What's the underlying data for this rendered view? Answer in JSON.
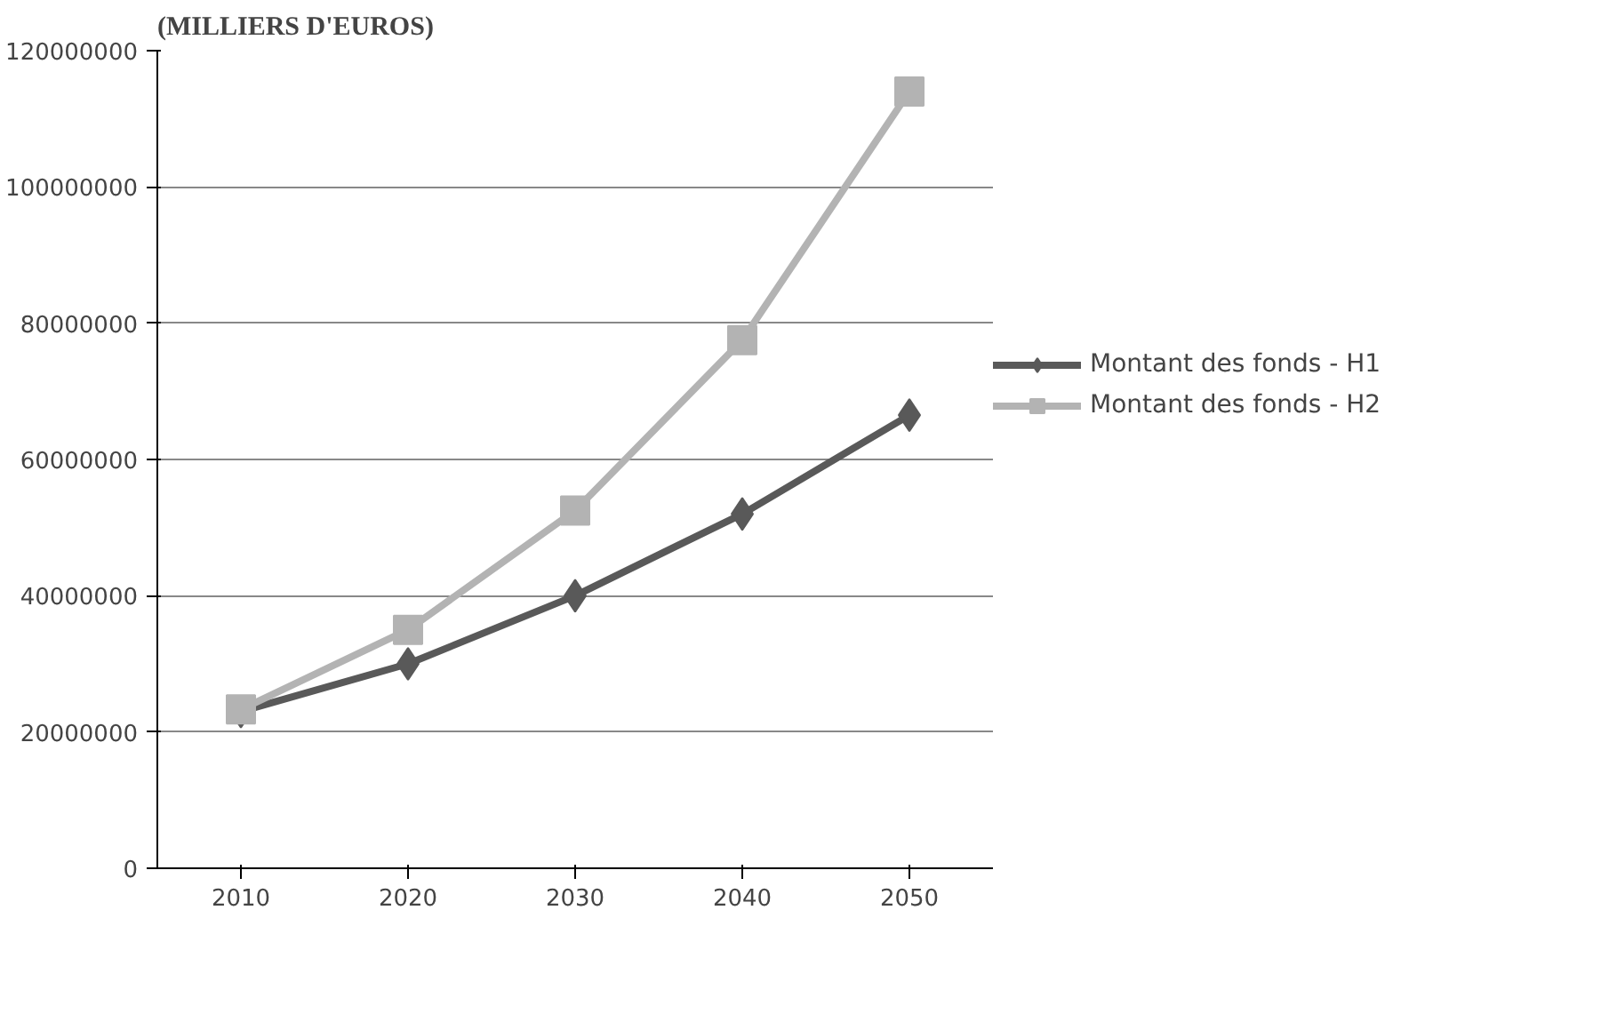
{
  "chart_data": {
    "type": "line",
    "title": "(MILLIERS D'EUROS)",
    "categories": [
      "2010",
      "2020",
      "2030",
      "2040",
      "2050"
    ],
    "series": [
      {
        "name": "Montant des fonds - H1",
        "color": "#595959",
        "marker": "diamond",
        "values": [
          23000000,
          30000000,
          40000000,
          52000000,
          66500000
        ]
      },
      {
        "name": "Montant des fonds - H2",
        "color": "#b3b3b3",
        "marker": "square",
        "values": [
          23300000,
          35000000,
          52500000,
          77500000,
          114000000
        ]
      }
    ],
    "ylim": [
      0,
      120000000
    ],
    "yticks": [
      0,
      20000000,
      40000000,
      60000000,
      80000000,
      100000000,
      120000000
    ],
    "grid": "y",
    "legend": "right",
    "line_style": "solid"
  }
}
